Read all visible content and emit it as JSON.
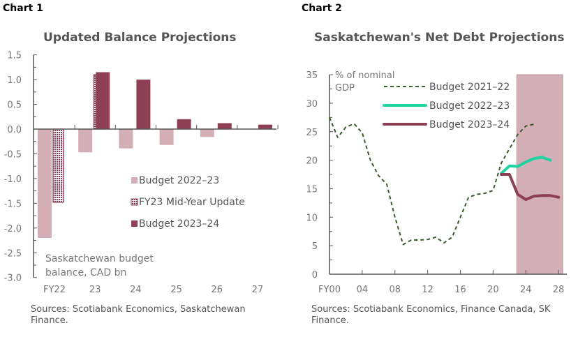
{
  "chart_data": [
    {
      "label": "Chart 1",
      "type": "bar",
      "title": "Updated Balance Projections",
      "ylabel": "Saskatchewan budget balance, CAD bn",
      "categories": [
        "FY22",
        "23",
        "24",
        "25",
        "26",
        "27"
      ],
      "ylim": [
        -3.0,
        1.5
      ],
      "yticks": [
        "1.5",
        "1.0",
        "0.5",
        "0.0",
        "-0.5",
        "-1.0",
        "-1.5",
        "-2.0",
        "-2.5",
        "-3.0"
      ],
      "legend_position": "center-right",
      "series": [
        {
          "name": "Budget 2022–23",
          "color": "#d4aeb6",
          "values": [
            -2.2,
            -0.47,
            -0.39,
            -0.32,
            -0.16,
            null
          ]
        },
        {
          "name": "FY23 Mid-Year Update",
          "color": "#8c3f55",
          "pattern": "dotted",
          "values": [
            -1.48,
            1.1,
            null,
            null,
            null,
            null
          ]
        },
        {
          "name": "Budget 2023–24",
          "color": "#8c3f55",
          "values": [
            null,
            1.15,
            1.0,
            0.2,
            0.12,
            0.09
          ]
        }
      ],
      "source": "Sources: Scotiabank Economics, Saskatchewan Finance."
    },
    {
      "label": "Chart 2",
      "type": "line",
      "title": "Saskatchewan's Net Debt Projections",
      "ylabel": "% of nominal GDP",
      "xticks": [
        "FY00",
        "04",
        "08",
        "12",
        "16",
        "20",
        "24",
        "28"
      ],
      "yticks": [
        "0",
        "5",
        "10",
        "15",
        "20",
        "25",
        "30",
        "35"
      ],
      "ylim": [
        0,
        35
      ],
      "xlim": [
        2000,
        2028.5
      ],
      "shaded_region": {
        "from": 2022.9,
        "to": 2028.5,
        "color": "#d4aeb6"
      },
      "legend_position": "top-center",
      "series": [
        {
          "name": "Budget 2021–22",
          "color": "#3b5a2a",
          "style": "dashed",
          "x": [
            2000,
            2001,
            2002,
            2003,
            2004,
            2005,
            2006,
            2007,
            2008,
            2009,
            2010,
            2011,
            2012,
            2013,
            2014,
            2015,
            2016,
            2017,
            2018,
            2019,
            2020,
            2021,
            2022,
            2023,
            2024,
            2025
          ],
          "y": [
            27.5,
            24,
            25.8,
            26.4,
            24.8,
            20,
            17.3,
            15.8,
            10,
            5.2,
            6,
            6,
            6.1,
            6.5,
            5.5,
            6.5,
            10,
            13.5,
            14,
            14.2,
            14.7,
            19.5,
            22,
            24.5,
            26,
            26.3
          ]
        },
        {
          "name": "Budget 2022–23",
          "color": "#1fd3a0",
          "style": "solid",
          "x": [
            2021,
            2022,
            2023,
            2024,
            2025,
            2026,
            2027
          ],
          "y": [
            17.7,
            19,
            18.9,
            19.7,
            20.3,
            20.5,
            20
          ]
        },
        {
          "name": "Budget 2023–24",
          "color": "#8c3f55",
          "style": "solid",
          "x": [
            2021,
            2022,
            2023,
            2024,
            2025,
            2026,
            2027,
            2028
          ],
          "y": [
            17.5,
            17.5,
            14,
            13.1,
            13.7,
            13.8,
            13.8,
            13.5
          ]
        }
      ],
      "source": "Sources: Scotiabank Economics, Finance Canada, SK Finance."
    }
  ]
}
